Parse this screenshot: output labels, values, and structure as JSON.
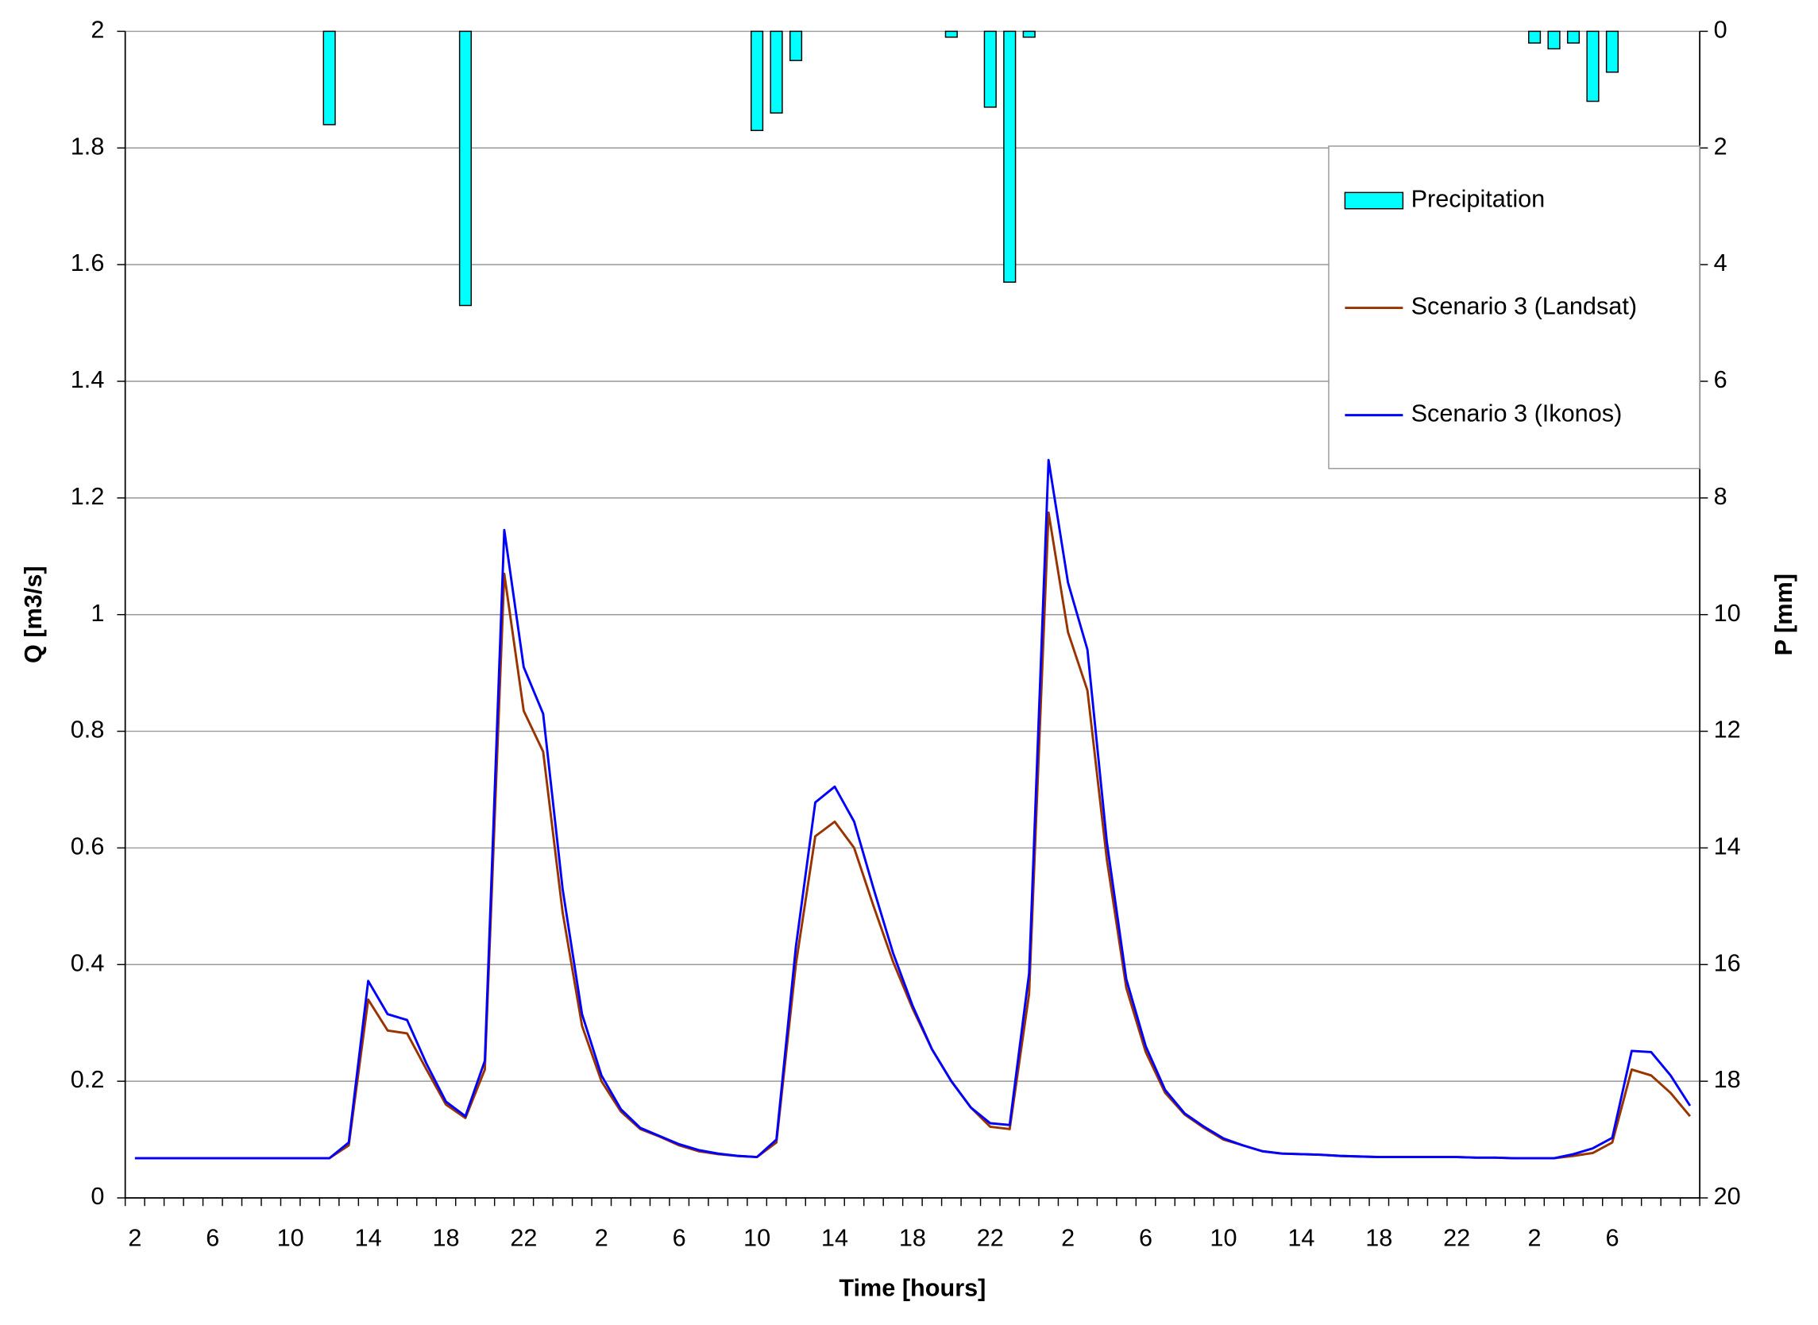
{
  "chart_data": {
    "type": "combo",
    "x_label": "Time [hours]",
    "y_label": "Q [m3/s]",
    "y2_label": "P [mm]",
    "categories": [
      "2",
      null,
      null,
      null,
      "6",
      null,
      null,
      null,
      "10",
      null,
      null,
      null,
      "14",
      null,
      null,
      null,
      "18",
      null,
      null,
      null,
      "22",
      null,
      null,
      null,
      "2",
      null,
      null,
      null,
      "6",
      null,
      null,
      null,
      "10",
      null,
      null,
      null,
      "14",
      null,
      null,
      null,
      "18",
      null,
      null,
      null,
      "22",
      null,
      null,
      null,
      "2",
      null,
      null,
      null,
      "6",
      null,
      null,
      null,
      "10",
      null,
      null,
      null,
      "14",
      null,
      null,
      null,
      "18",
      null,
      null,
      null,
      "22",
      null,
      null,
      null,
      "2",
      null,
      null,
      null,
      "6",
      null,
      null,
      null,
      null
    ],
    "ylim": [
      0,
      2
    ],
    "yticks": [
      0,
      0.2,
      0.4,
      0.6,
      0.8,
      1,
      1.2,
      1.4,
      1.6,
      1.8,
      2
    ],
    "y2lim": [
      20,
      0
    ],
    "y2ticks": [
      0,
      2,
      4,
      6,
      8,
      10,
      12,
      14,
      16,
      18,
      20
    ],
    "grid": true,
    "legend": "upper right",
    "series": [
      {
        "name": "Precipitation",
        "type": "bar",
        "axis": "y2",
        "color": "#00ffff",
        "values": [
          null,
          null,
          null,
          null,
          null,
          null,
          null,
          null,
          null,
          null,
          1.6,
          null,
          null,
          null,
          null,
          null,
          null,
          4.7,
          null,
          null,
          null,
          null,
          null,
          null,
          null,
          null,
          null,
          null,
          null,
          null,
          null,
          null,
          1.7,
          1.4,
          0.5,
          null,
          null,
          null,
          null,
          null,
          null,
          null,
          0.1,
          null,
          1.3,
          4.3,
          0.1,
          null,
          null,
          null,
          null,
          null,
          null,
          null,
          null,
          null,
          null,
          null,
          null,
          null,
          null,
          null,
          null,
          null,
          null,
          null,
          null,
          null,
          null,
          null,
          null,
          null,
          0.2,
          0.3,
          0.2,
          1.2,
          0.7,
          null,
          null,
          null,
          null
        ]
      },
      {
        "name": "Scenario 3 (Landsat)",
        "type": "line",
        "axis": "y",
        "color": "#993300",
        "values": [
          0.068,
          0.068,
          0.068,
          0.068,
          0.068,
          0.068,
          0.068,
          0.068,
          0.068,
          0.068,
          0.068,
          0.09,
          0.34,
          0.287,
          0.282,
          0.22,
          0.16,
          0.137,
          0.22,
          1.07,
          0.835,
          0.765,
          0.49,
          0.295,
          0.2,
          0.148,
          0.118,
          0.105,
          0.09,
          0.08,
          0.075,
          0.072,
          0.07,
          0.095,
          0.4,
          0.62,
          0.645,
          0.6,
          0.5,
          0.405,
          0.325,
          0.255,
          0.2,
          0.155,
          0.122,
          0.118,
          0.35,
          1.175,
          0.97,
          0.87,
          0.58,
          0.36,
          0.25,
          0.18,
          0.143,
          0.12,
          0.1,
          0.09,
          0.08,
          0.076,
          0.075,
          0.074,
          0.072,
          0.071,
          0.07,
          0.07,
          0.07,
          0.07,
          0.07,
          0.069,
          0.069,
          0.068,
          0.068,
          0.068,
          0.072,
          0.077,
          0.095,
          0.22,
          0.21,
          0.18,
          0.14
        ]
      },
      {
        "name": "Scenario 3 (Ikonos)",
        "type": "line",
        "axis": "y",
        "color": "#0000ff",
        "values": [
          0.068,
          0.068,
          0.068,
          0.068,
          0.068,
          0.068,
          0.068,
          0.068,
          0.068,
          0.068,
          0.068,
          0.095,
          0.372,
          0.315,
          0.305,
          0.23,
          0.165,
          0.14,
          0.235,
          1.145,
          0.91,
          0.83,
          0.53,
          0.315,
          0.21,
          0.152,
          0.12,
          0.106,
          0.092,
          0.082,
          0.076,
          0.072,
          0.07,
          0.1,
          0.43,
          0.678,
          0.705,
          0.645,
          0.53,
          0.42,
          0.33,
          0.255,
          0.2,
          0.155,
          0.128,
          0.125,
          0.385,
          1.265,
          1.055,
          0.94,
          0.61,
          0.375,
          0.26,
          0.185,
          0.145,
          0.122,
          0.102,
          0.09,
          0.08,
          0.076,
          0.075,
          0.074,
          0.072,
          0.071,
          0.07,
          0.07,
          0.07,
          0.07,
          0.07,
          0.069,
          0.069,
          0.068,
          0.068,
          0.068,
          0.075,
          0.085,
          0.103,
          0.252,
          0.25,
          0.21,
          0.158
        ]
      }
    ]
  }
}
